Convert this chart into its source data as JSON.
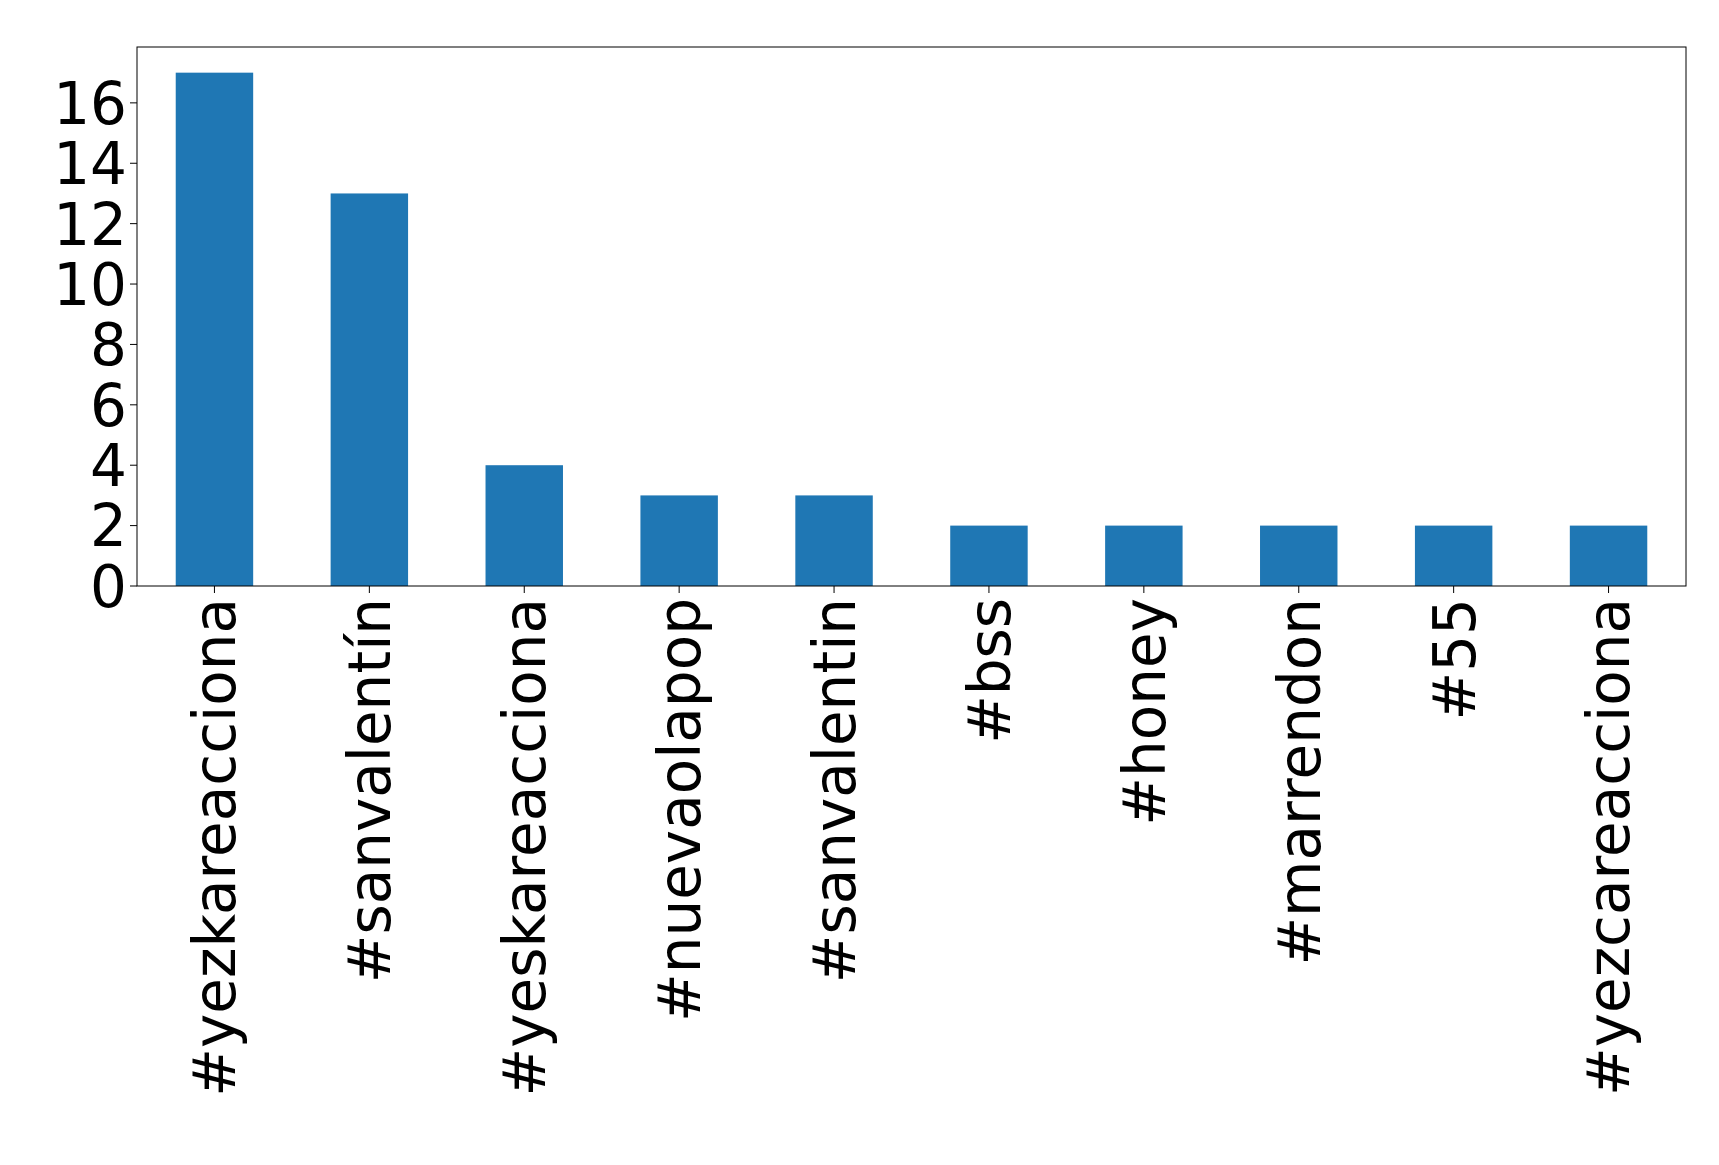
{
  "chart_data": {
    "type": "bar",
    "categories": [
      "#yezkareacciona",
      "#sanvalentín",
      "#yeskareacciona",
      "#nuevaolapop",
      "#sanvalentin",
      "#bss",
      "#honey",
      "#marrendon",
      "#55",
      "#yezcareacciona"
    ],
    "values": [
      17,
      13,
      4,
      3,
      3,
      2,
      2,
      2,
      2,
      2
    ],
    "color": "#1f77b4",
    "ylim": [
      0,
      17.85
    ],
    "yticks": [
      0,
      2,
      4,
      6,
      8,
      10,
      12,
      14,
      16
    ],
    "grid": false
  }
}
